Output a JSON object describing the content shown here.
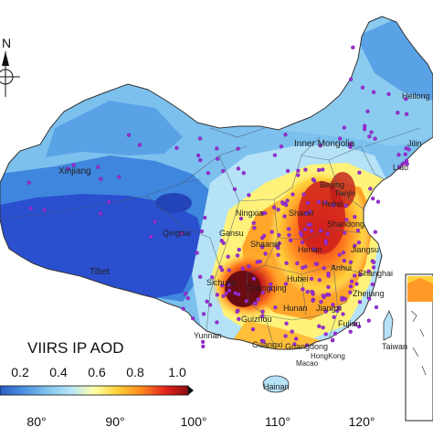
{
  "colorbar": {
    "title": "VIIRS IP AOD",
    "ticks": [
      "0.2",
      "0.4",
      "0.6",
      "0.8",
      "1.0"
    ],
    "range": [
      0,
      1.0
    ],
    "colors": [
      "#2c5fc9",
      "#4a8ee0",
      "#7fc3ee",
      "#b8e5f6",
      "#ffffa8",
      "#ffd23c",
      "#ff8a1e",
      "#e3231c",
      "#8b0f12"
    ]
  },
  "longitude_labels": [
    "80°",
    "90°",
    "100°",
    "110°",
    "120°"
  ],
  "compass": {
    "label": "N"
  },
  "regions": {
    "xinjiang": "Xinjiang",
    "tibet": "Tibet",
    "qinghai": "Qinghai",
    "gansu": "Gansu",
    "ningxia": "Ningxia",
    "inner_mongolia": "Inner Mongolia",
    "heilongjiang": "Heilong",
    "jilin": "Jilin",
    "liaoning": "Liao",
    "beijing": "Beijing",
    "tianjin": "Tianjin",
    "hebei": "Hebei",
    "shanxi": "Shanxi",
    "shandong": "Shandong",
    "shaanxi": "Shaanxi",
    "henan": "Henan",
    "jiangsu": "Jiangsu",
    "anhui": "Anhui",
    "shanghai": "Shanghai",
    "sichuan": "Sichuan",
    "chongqing": "Chongqing",
    "hubei": "Hubei",
    "zhejiang": "Zhejiang",
    "hunan": "Hunan",
    "jiangxi": "Jiangxi",
    "fujian": "Fujian",
    "guizhou": "Guizhou",
    "yunnan": "Yunnan",
    "guangxi": "Guangxi",
    "guangdong": "Guangdong",
    "taiwan": "Taiwan",
    "hainan": "Hainan",
    "hongkong": "HongKong",
    "macao": "Macao"
  },
  "colors": {
    "deep_blue": "#2a4fcf",
    "mid_blue": "#3f86de",
    "light_blue": "#7cc0ee",
    "pale_blue": "#b5e2f7",
    "yellow": "#fff27a",
    "orange": "#ff9a28",
    "red": "#e2231e",
    "dark_red": "#8d1015",
    "station": "#9b2fd6"
  }
}
